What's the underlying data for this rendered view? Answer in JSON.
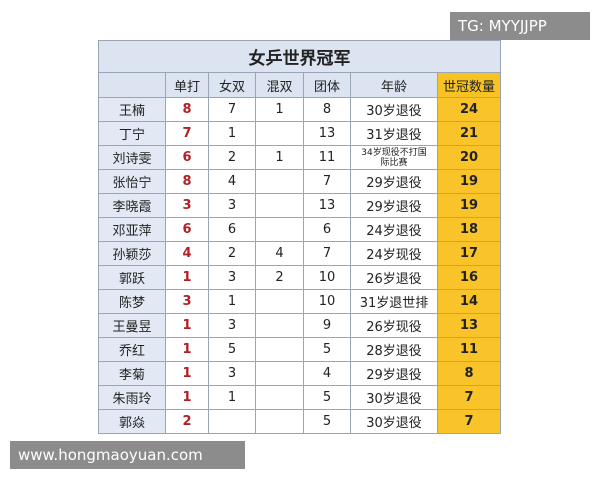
{
  "watermarks": {
    "top": "TG: MYYJJPP",
    "bottom": "www.hongmaoyuan.com"
  },
  "table": {
    "title": "女乒世界冠军",
    "header": [
      null,
      "单打",
      "女双",
      "混双",
      "团体",
      "年龄",
      "世冠数量"
    ],
    "rows": [
      [
        "王楠",
        8,
        7,
        1,
        8,
        "30岁退役",
        24
      ],
      [
        "丁宁",
        7,
        1,
        null,
        13,
        "31岁退役",
        21
      ],
      [
        "刘诗雯",
        6,
        2,
        1,
        11,
        "34岁现役不打国际比赛",
        20
      ],
      [
        "张怡宁",
        8,
        4,
        null,
        7,
        "29岁退役",
        19
      ],
      [
        "李晓霞",
        3,
        3,
        null,
        13,
        "29岁退役",
        19
      ],
      [
        "邓亚萍",
        6,
        6,
        null,
        6,
        "24岁退役",
        18
      ],
      [
        "孙颖莎",
        4,
        2,
        4,
        7,
        "24岁现役",
        17
      ],
      [
        "郭跃",
        1,
        3,
        2,
        10,
        "26岁退役",
        16
      ],
      [
        "陈梦",
        3,
        1,
        null,
        10,
        "31岁退世排",
        14
      ],
      [
        "王曼昱",
        1,
        3,
        null,
        9,
        "26岁现役",
        13
      ],
      [
        "乔红",
        1,
        5,
        null,
        5,
        "28岁退役",
        11
      ],
      [
        "李菊",
        1,
        3,
        null,
        4,
        "29岁退役",
        8
      ],
      [
        "朱雨玲",
        1,
        1,
        null,
        5,
        "30岁退役",
        7
      ],
      [
        "郭焱",
        2,
        null,
        null,
        5,
        "30岁退役",
        7
      ]
    ]
  }
}
